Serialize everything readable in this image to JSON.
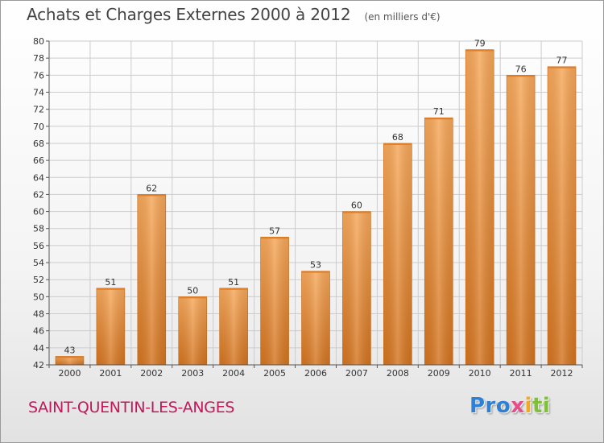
{
  "header": {
    "title": "Achats et Charges Externes 2000 à 2012",
    "subtitle": "(en milliers d'€)"
  },
  "footer": {
    "place": "SAINT-QUENTIN-LES-ANGES",
    "logo": [
      "Pro",
      "x",
      "i",
      "ti"
    ]
  },
  "colors": {
    "bar_light": "#f7a85a",
    "bar_dark": "#d4741f",
    "axis": "#555555",
    "grid": "#cccccc",
    "place": "#c2185b"
  },
  "chart_data": {
    "type": "bar",
    "title": "Achats et Charges Externes 2000 à 2012",
    "subtitle": "(en milliers d'€)",
    "categories": [
      "2000",
      "2001",
      "2002",
      "2003",
      "2004",
      "2005",
      "2006",
      "2007",
      "2008",
      "2009",
      "2010",
      "2011",
      "2012"
    ],
    "values": [
      43,
      51,
      62,
      50,
      51,
      57,
      53,
      60,
      68,
      71,
      79,
      76,
      77
    ],
    "xlabel": "",
    "ylabel": "",
    "ylim": [
      42,
      80
    ],
    "yticks": [
      42,
      44,
      46,
      48,
      50,
      52,
      54,
      56,
      58,
      60,
      62,
      64,
      66,
      68,
      70,
      72,
      74,
      76,
      78,
      80
    ],
    "grid": true,
    "legend": "none"
  }
}
